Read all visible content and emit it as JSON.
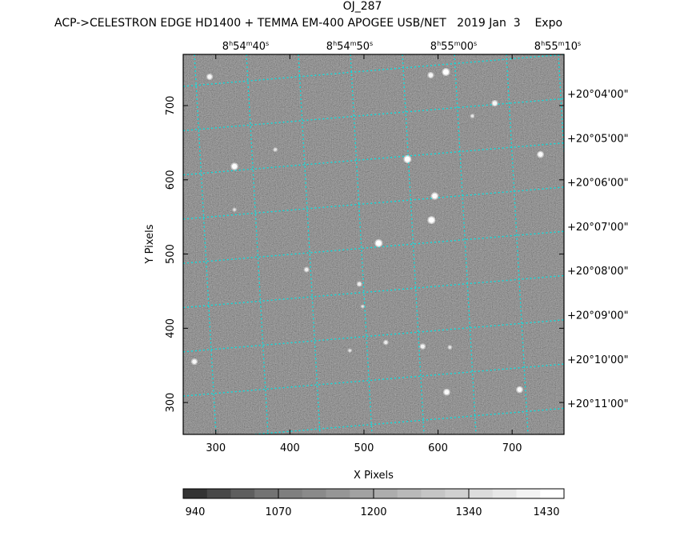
{
  "title": "OJ_287",
  "subtitle": "ACP->CELESTRON EDGE HD1400 + TEMMA EM-400 APOGEE USB/NET   2019 Jan  3    Expo",
  "chart_data": {
    "type": "image",
    "xlabel": "X Pixels",
    "ylabel": "Y Pixels",
    "xlim": [
      256,
      770
    ],
    "ylim": [
      257,
      769
    ],
    "xticks": [
      "300",
      "400",
      "500",
      "600",
      "700"
    ],
    "yticks": [
      "300",
      "400",
      "500",
      "600",
      "700"
    ],
    "ra_labels": [
      "8h54m40s",
      "8h54m50s",
      "8h55m00s",
      "8h55m10s"
    ],
    "ra_label_parts": [
      [
        "8",
        "h",
        "54",
        "m",
        "40",
        "s"
      ],
      [
        "8",
        "h",
        "54",
        "m",
        "50",
        "s"
      ],
      [
        "8",
        "h",
        "55",
        "m",
        "00",
        "s"
      ],
      [
        "8",
        "h",
        "55",
        "m",
        "10",
        "s"
      ]
    ],
    "dec_labels": [
      "+20°04'00\"",
      "+20°05'00\"",
      "+20°06'00\"",
      "+20°07'00\"",
      "+20°08'00\"",
      "+20°09'00\"",
      "+20°10'00\"",
      "+20°11'00\""
    ],
    "grid_color": "#00e5e5",
    "background_level": "#8c8c8c",
    "stars": [
      {
        "x": 291.7,
        "y": 738.8,
        "b": 0.7
      },
      {
        "x": 325.2,
        "y": 618.1,
        "b": 0.9
      },
      {
        "x": 380.3,
        "y": 640.7,
        "b": 0.3
      },
      {
        "x": 325.2,
        "y": 559.8,
        "b": 0.25
      },
      {
        "x": 610.6,
        "y": 745.3,
        "b": 1
      },
      {
        "x": 590.1,
        "y": 741.0,
        "b": 0.7
      },
      {
        "x": 676.5,
        "y": 703.2,
        "b": 0.7
      },
      {
        "x": 646.3,
        "y": 686.0,
        "b": 0.3
      },
      {
        "x": 558.7,
        "y": 627.8,
        "b": 1
      },
      {
        "x": 738.2,
        "y": 634.2,
        "b": 0.8
      },
      {
        "x": 595.5,
        "y": 578.2,
        "b": 0.9
      },
      {
        "x": 591.1,
        "y": 545.8,
        "b": 1
      },
      {
        "x": 519.8,
        "y": 514.6,
        "b": 1
      },
      {
        "x": 422.5,
        "y": 479.0,
        "b": 0.5
      },
      {
        "x": 493.8,
        "y": 459.6,
        "b": 0.5
      },
      {
        "x": 498.2,
        "y": 429.4,
        "b": 0.2
      },
      {
        "x": 529.5,
        "y": 380.9,
        "b": 0.45
      },
      {
        "x": 579.2,
        "y": 375.5,
        "b": 0.6
      },
      {
        "x": 616.0,
        "y": 374.4,
        "b": 0.3
      },
      {
        "x": 480.9,
        "y": 370.1,
        "b": 0.25
      },
      {
        "x": 271.1,
        "y": 355.0,
        "b": 0.7
      },
      {
        "x": 611.7,
        "y": 314.0,
        "b": 0.8
      },
      {
        "x": 710.1,
        "y": 317.3,
        "b": 0.8
      }
    ],
    "colorbar": {
      "tick_labels": [
        "940",
        "1070",
        "1200",
        "1340",
        "1430"
      ],
      "levels": [
        "#333333",
        "#484848",
        "#5e5e5e",
        "#737373",
        "#7f7f7f",
        "#8a8a8a",
        "#969696",
        "#a2a2a2",
        "#adadad",
        "#b9b9b9",
        "#c5c5c5",
        "#d0d0d0",
        "#dcdcdc",
        "#e7e7e7",
        "#f3f3f3",
        "#ffffff"
      ]
    }
  }
}
